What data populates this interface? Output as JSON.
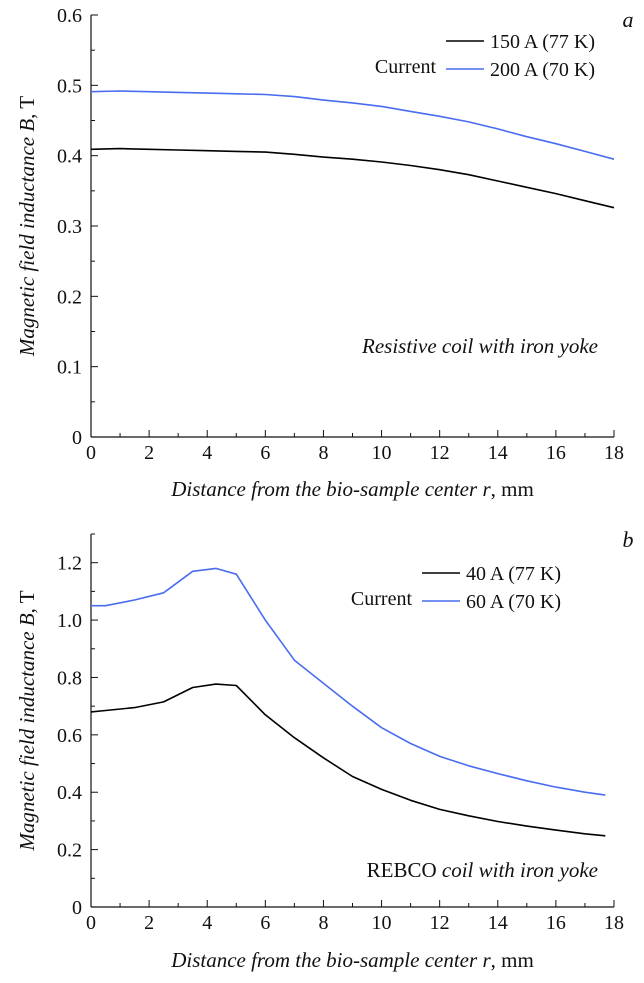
{
  "chart_data": [
    {
      "panel": "a",
      "type": "line",
      "xlabel": "Distance from the bio-sample center r, mm",
      "xlabel_parts": [
        "Distance from the bio-sample center ",
        "r",
        ", mm"
      ],
      "ylabel_parts": [
        "Magnetic field inductance ",
        "B",
        ", T"
      ],
      "xlim": [
        0,
        18
      ],
      "ylim": [
        0,
        0.6
      ],
      "x_ticks": [
        0,
        2,
        4,
        6,
        8,
        10,
        12,
        14,
        16,
        18
      ],
      "y_ticks": [
        0,
        0.1,
        0.2,
        0.3,
        0.4,
        0.5,
        0.6
      ],
      "y_tick_labels": [
        "0",
        "0.1",
        "0.2",
        "0.3",
        "0.4",
        "0.5",
        "0.6"
      ],
      "legend_title": "Current",
      "legend_position": "top-right",
      "annotation_italic": "Resistive coil with iron yoke",
      "annotation_upright": "",
      "grid": false,
      "series": [
        {
          "name": "150 A (77 K)",
          "color": "#000000",
          "x": [
            0,
            1,
            2,
            3,
            4,
            5,
            6,
            7,
            8,
            9,
            10,
            11,
            12,
            13,
            14,
            15,
            16,
            17,
            18
          ],
          "y": [
            0.409,
            0.41,
            0.409,
            0.408,
            0.407,
            0.406,
            0.405,
            0.402,
            0.398,
            0.395,
            0.391,
            0.386,
            0.38,
            0.373,
            0.364,
            0.355,
            0.346,
            0.336,
            0.326
          ]
        },
        {
          "name": "200 A (70 K)",
          "color": "#4a6cf0",
          "x": [
            0,
            1,
            2,
            3,
            4,
            5,
            6,
            7,
            8,
            9,
            10,
            11,
            12,
            13,
            14,
            15,
            16,
            17,
            18
          ],
          "y": [
            0.491,
            0.492,
            0.491,
            0.49,
            0.489,
            0.488,
            0.487,
            0.484,
            0.479,
            0.475,
            0.47,
            0.463,
            0.456,
            0.448,
            0.438,
            0.427,
            0.417,
            0.406,
            0.395
          ]
        }
      ]
    },
    {
      "panel": "b",
      "type": "line",
      "xlabel": "Distance from the bio-sample center r, mm",
      "xlabel_parts": [
        "Distance from the bio-sample center ",
        "r",
        ", mm"
      ],
      "ylabel_parts": [
        "Magnetic field inductance ",
        "B",
        ", T"
      ],
      "xlim": [
        0,
        18
      ],
      "ylim": [
        0,
        1.3
      ],
      "x_ticks": [
        0,
        2,
        4,
        6,
        8,
        10,
        12,
        14,
        16,
        18
      ],
      "y_ticks": [
        0,
        0.2,
        0.4,
        0.6,
        0.8,
        1.0,
        1.2
      ],
      "y_tick_labels": [
        "0",
        "0.2",
        "0.4",
        "0.6",
        "0.8",
        "1.0",
        "1.2"
      ],
      "legend_title": "Current",
      "legend_position": "top-right",
      "annotation_italic": "coil with iron yoke",
      "annotation_upright": "REBCO",
      "grid": false,
      "series": [
        {
          "name": "40 A (77 K)",
          "color": "#000000",
          "x": [
            0,
            0.5,
            1.5,
            2.5,
            3.5,
            4.3,
            5.0,
            6.0,
            7.0,
            8.0,
            9.0,
            10.0,
            11.0,
            12.0,
            13.0,
            14.0,
            15.0,
            16.0,
            17.0,
            17.7
          ],
          "y": [
            0.68,
            0.685,
            0.695,
            0.715,
            0.765,
            0.777,
            0.772,
            0.67,
            0.59,
            0.52,
            0.455,
            0.41,
            0.372,
            0.34,
            0.318,
            0.298,
            0.282,
            0.268,
            0.255,
            0.248
          ]
        },
        {
          "name": "60 A (70 K)",
          "color": "#4a6cf0",
          "x": [
            0,
            0.5,
            1.5,
            2.5,
            3.5,
            4.3,
            5.0,
            6.0,
            7.0,
            8.0,
            9.0,
            10.0,
            11.0,
            12.0,
            13.0,
            14.0,
            15.0,
            16.0,
            17.0,
            17.7
          ],
          "y": [
            1.05,
            1.05,
            1.07,
            1.095,
            1.17,
            1.18,
            1.16,
            1.0,
            0.86,
            0.78,
            0.7,
            0.625,
            0.57,
            0.525,
            0.492,
            0.465,
            0.44,
            0.418,
            0.4,
            0.39
          ]
        }
      ]
    }
  ],
  "panel_labels": [
    "a",
    "b"
  ]
}
